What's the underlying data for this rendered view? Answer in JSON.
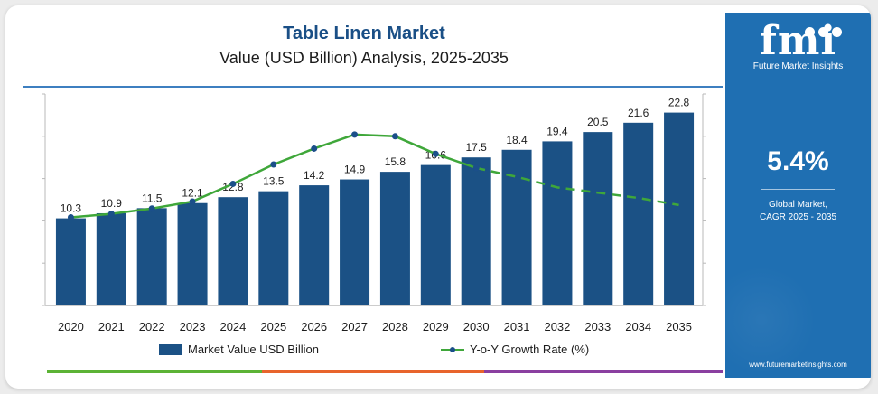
{
  "header": {
    "title": "Table Linen Market",
    "subtitle": "Value (USD Billion) Analysis, 2025-2035"
  },
  "sidebar": {
    "logo_mark": "fmi",
    "logo_text": "Future Market Insights",
    "cagr_value": "5.4%",
    "cagr_label_line1": "Global Market,",
    "cagr_label_line2": "CAGR 2025 - 2035",
    "website": "www.futuremarketinsights.com"
  },
  "legend": {
    "bar_label": "Market Value USD Billion",
    "line_label": "Y-o-Y Growth Rate (%)"
  },
  "colors": {
    "bar": "#1b5185",
    "growth_line": "#3fa73a",
    "growth_marker": "#1b4f8a",
    "title": "#1a4f86",
    "sidebar": "#1f6fb2",
    "stripe_green": "#5cb335",
    "stripe_orange": "#e8642c",
    "stripe_purple": "#8a3fa0"
  },
  "chart_data": {
    "type": "bar",
    "title": "Table Linen Market",
    "subtitle": "Value (USD Billion) Analysis, 2025-2035",
    "categories": [
      "2020",
      "2021",
      "2022",
      "2023",
      "2024",
      "2025",
      "2026",
      "2027",
      "2028",
      "2029",
      "2030",
      "2031",
      "2032",
      "2033",
      "2034",
      "2035"
    ],
    "series": [
      {
        "name": "Market Value USD Billion",
        "type": "bar",
        "values": [
          10.3,
          10.9,
          11.5,
          12.1,
          12.8,
          13.5,
          14.2,
          14.9,
          15.8,
          16.6,
          17.5,
          18.4,
          19.4,
          20.5,
          21.6,
          22.8
        ],
        "value_labels": [
          "10.3",
          "10.9",
          "11.5",
          "12.1",
          "12.8",
          "13.5",
          "14.2",
          "14.9",
          "15.8",
          "16.6",
          "17.5",
          "18.4",
          "19.4",
          "20.5",
          "21.6",
          "22.8"
        ]
      },
      {
        "name": "Y-o-Y Growth Rate (%)",
        "type": "line",
        "values": [
          5.0,
          5.2,
          5.5,
          5.9,
          6.9,
          8.0,
          8.9,
          9.7,
          9.6,
          8.6,
          7.8,
          7.3,
          6.7,
          6.4,
          6.1,
          5.7
        ],
        "dashed_from_index": 11,
        "markers_through_index": 10
      }
    ],
    "ylim": [
      0,
      25
    ],
    "y2lim": [
      0,
      12
    ],
    "xlabel": "",
    "ylabel": "",
    "grid": false,
    "legend_position": "bottom"
  }
}
